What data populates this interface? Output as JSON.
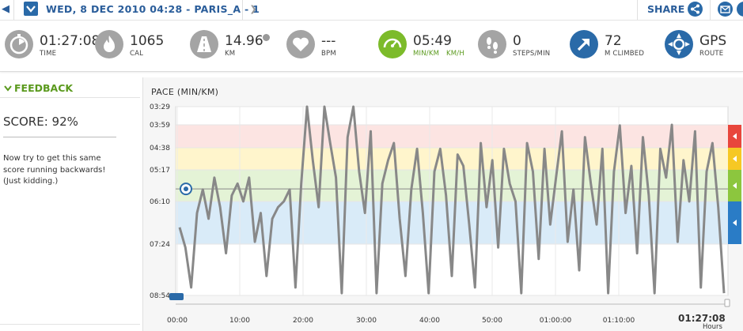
{
  "header": {
    "date_title": "WED, 8 DEC 2010 04:28 - PARIS_A  - 1",
    "share_label": "SHARE"
  },
  "stats": [
    {
      "name": "time",
      "value": "01:27:08",
      "label": "TIME",
      "icon": "stopwatch-icon"
    },
    {
      "name": "cal",
      "value": "1065",
      "label": "CAL",
      "icon": "flame-icon"
    },
    {
      "name": "km",
      "value": "14.96",
      "label": "KM",
      "icon": "road-icon"
    },
    {
      "name": "bpm",
      "value": "---",
      "label": "BPM",
      "icon": "heart-icon"
    },
    {
      "name": "pace",
      "value": "05:49",
      "label": "MIN/KM",
      "label2": "KM/H",
      "icon": "speedometer-icon"
    },
    {
      "name": "steps",
      "value": "0",
      "label": "STEPS/MIN",
      "icon": "footprints-icon"
    },
    {
      "name": "climbed",
      "value": "72",
      "label": "M CLIMBED",
      "icon": "arrow-up-right-icon"
    },
    {
      "name": "gps",
      "value": "GPS",
      "label": "ROUTE",
      "icon": "compass-icon"
    }
  ],
  "feedback": {
    "title": "FEEDBACK",
    "score": "SCORE: 92%",
    "message": "Now try to get this same score running backwards! (Just kidding.)"
  },
  "colors": {
    "accent_blue": "#2a6aa8",
    "accent_green": "#7cbb2a",
    "zone_red": "#e8463c",
    "zone_yellow": "#f6c824",
    "zone_green": "#8cc63e",
    "zone_blue": "#2a7cc6",
    "pace_line": "#888888"
  },
  "chart_data": {
    "type": "line",
    "title": "PACE (MIN/KM)",
    "ylabel": "PACE (MIN/KM)",
    "xlabel": "Hours",
    "y_ticks": [
      "03:29",
      "03:59",
      "04:38",
      "05:17",
      "06:10",
      "07:24",
      "08:54"
    ],
    "x_ticks": [
      "00:00",
      "10:00",
      "20:00",
      "30:00",
      "40:00",
      "50:00",
      "01:00:00",
      "01:10:00"
    ],
    "total_time": "01:27:08",
    "average_pace": "05:49",
    "series": [
      {
        "values": [
          "06:55",
          "07:30",
          "08:40",
          "06:30",
          "05:50",
          "06:40",
          "05:30",
          "06:20",
          "07:40",
          "06:00",
          "05:40",
          "06:10",
          "05:30",
          "07:20",
          "06:30",
          "08:20",
          "06:40",
          "06:20",
          "06:10",
          "05:50",
          "08:40",
          "05:40",
          "03:29",
          "05:00",
          "06:20",
          "03:29",
          "04:30",
          "05:30",
          "08:50",
          "04:20",
          "03:29",
          "05:20",
          "06:30",
          "04:10",
          "08:50",
          "05:40",
          "05:00",
          "04:30",
          "06:40",
          "08:20",
          "05:50",
          "04:40",
          "06:30",
          "08:50",
          "05:20",
          "04:40",
          "06:00",
          "08:20",
          "04:50",
          "05:10",
          "06:50",
          "08:40",
          "04:30",
          "06:20",
          "05:00",
          "07:30",
          "04:40",
          "05:40",
          "06:10",
          "08:50",
          "04:30",
          "05:20",
          "07:50",
          "04:40",
          "06:50",
          "05:30",
          "04:10",
          "07:20",
          "05:50",
          "08:10",
          "04:20",
          "05:40",
          "06:50",
          "04:40",
          "08:50",
          "05:20",
          "04:00",
          "06:30",
          "05:10",
          "07:40",
          "04:20",
          "06:00",
          "08:50",
          "04:40",
          "05:30",
          "03:59",
          "07:20",
          "05:00",
          "06:10",
          "04:10",
          "08:40",
          "05:20",
          "04:30",
          "06:20",
          "08:50"
        ]
      }
    ],
    "zones": [
      {
        "name": "red",
        "from": "03:59",
        "to": "04:38"
      },
      {
        "name": "yellow",
        "from": "04:38",
        "to": "05:17"
      },
      {
        "name": "green",
        "from": "05:17",
        "to": "06:10"
      },
      {
        "name": "blue",
        "from": "06:10",
        "to": "07:24"
      }
    ]
  }
}
